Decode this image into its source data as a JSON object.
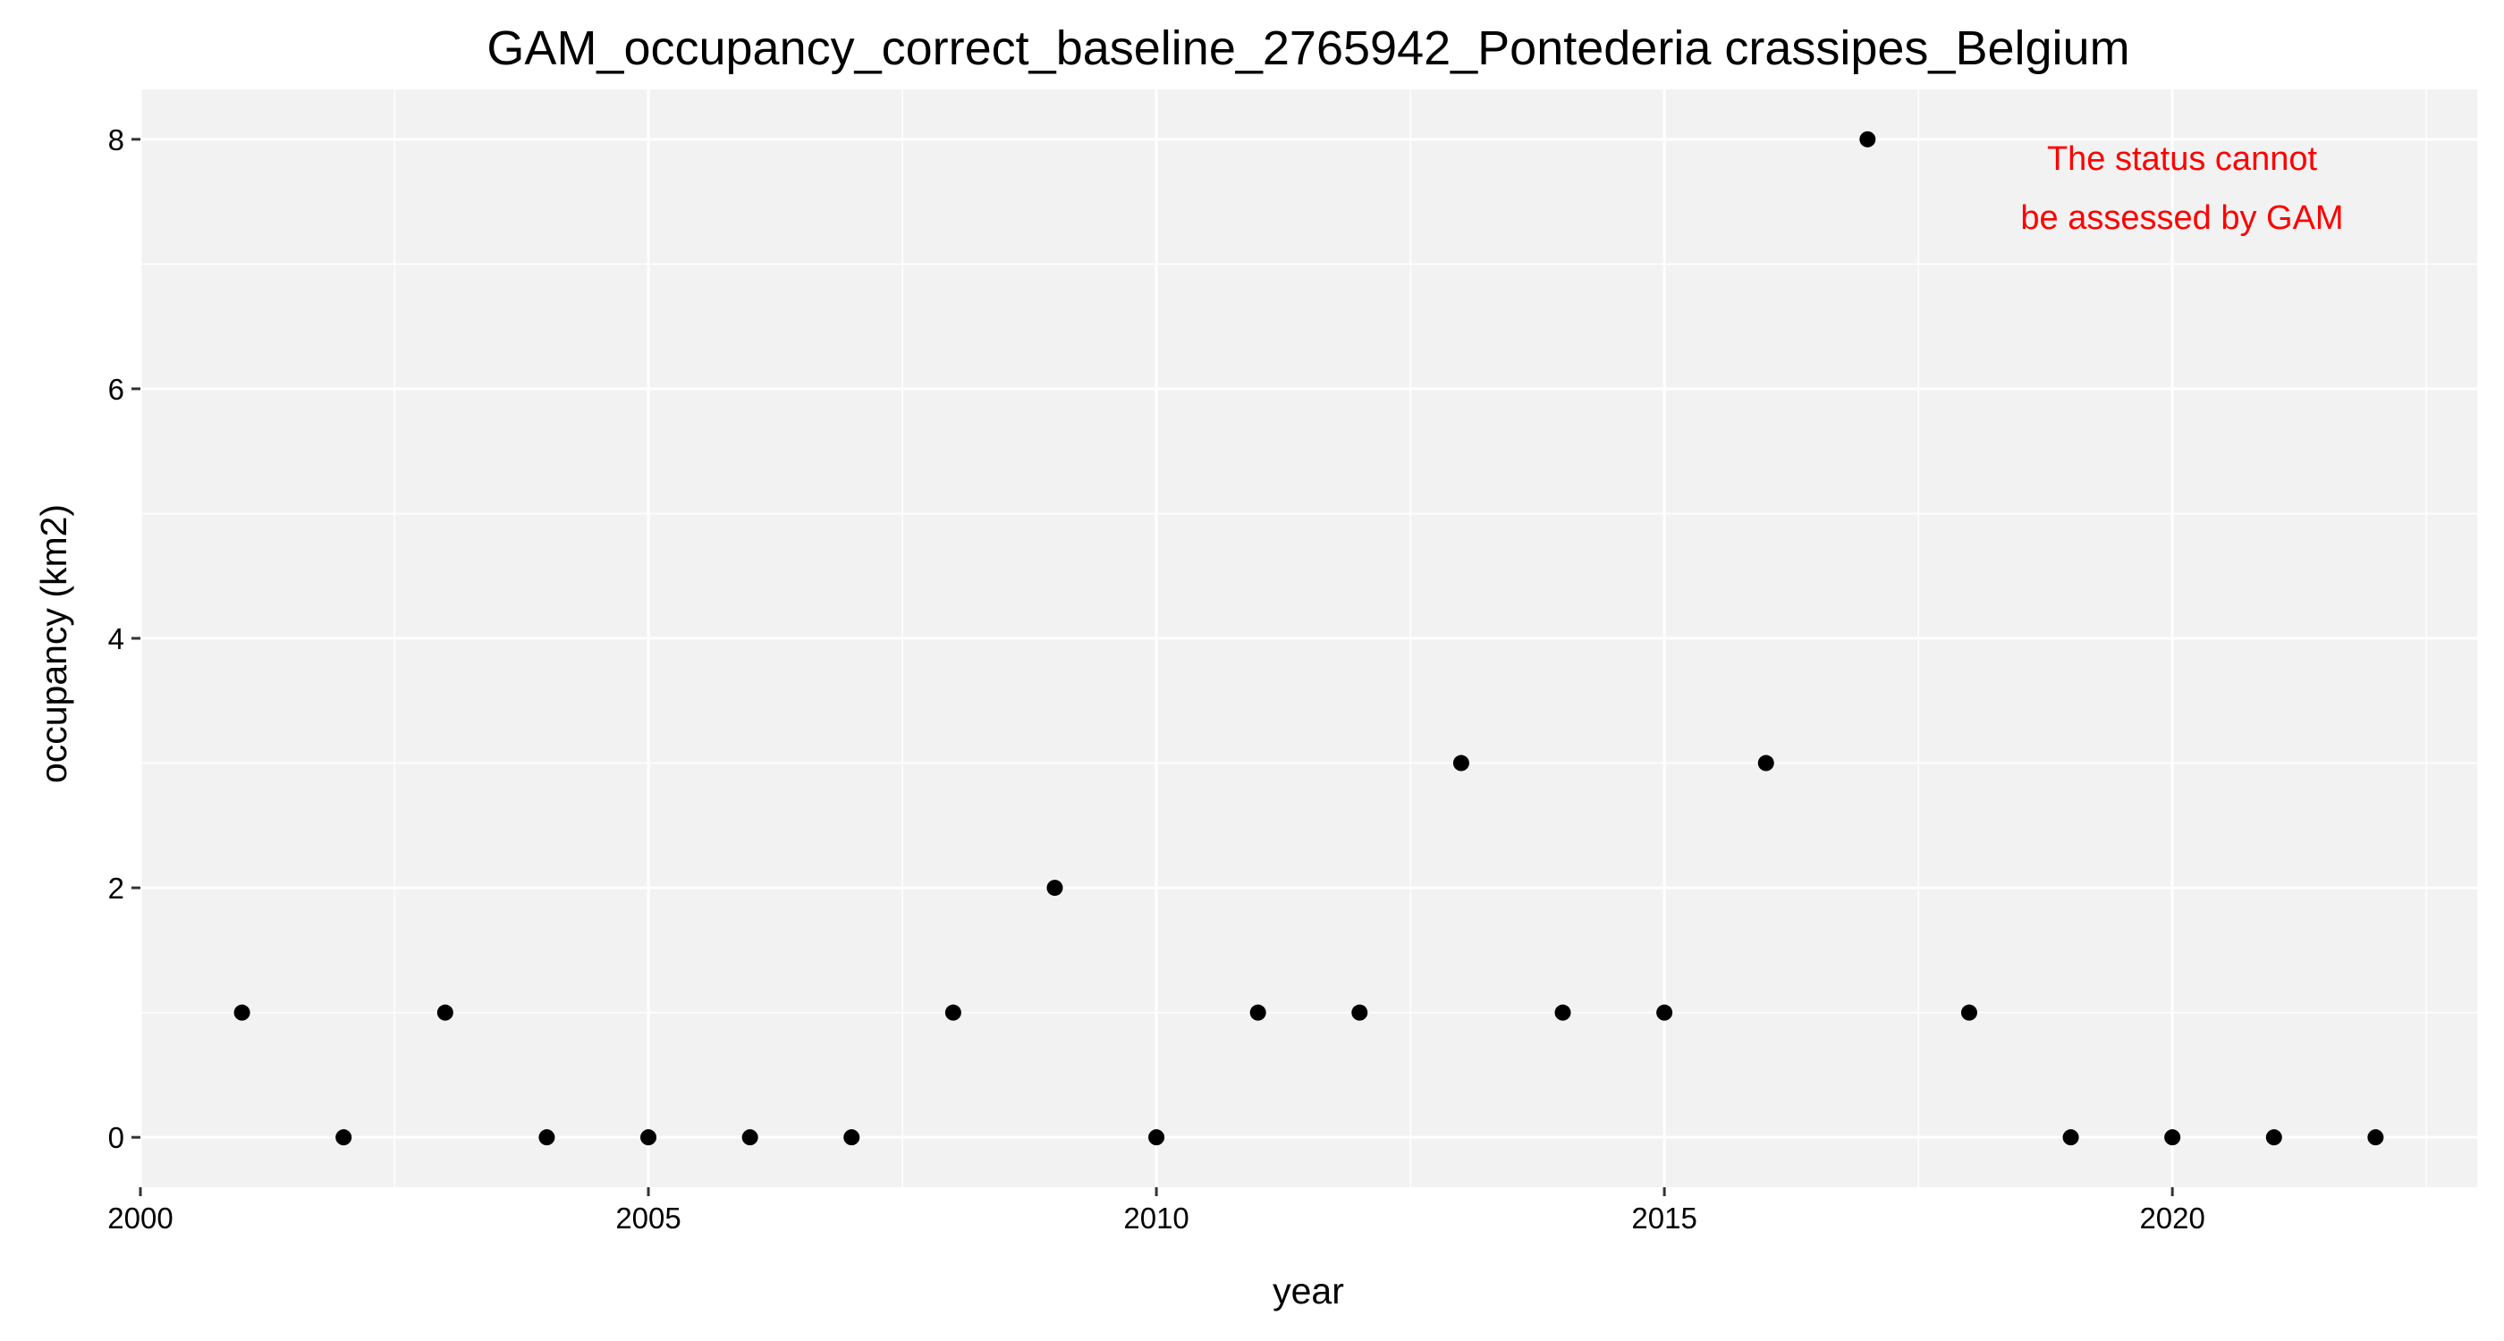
{
  "chart_data": {
    "type": "scatter",
    "title": "GAM_occupancy_correct_baseline_2765942_Pontederia crassipes_Belgium",
    "xlabel": "year",
    "ylabel": "occupancy (km2)",
    "x": [
      2001,
      2002,
      2003,
      2004,
      2005,
      2006,
      2007,
      2008,
      2009,
      2010,
      2011,
      2012,
      2013,
      2014,
      2015,
      2016,
      2017,
      2018,
      2019,
      2020,
      2021,
      2022
    ],
    "y": [
      1,
      0,
      1,
      0,
      0,
      0,
      0,
      1,
      2,
      0,
      1,
      1,
      3,
      1,
      1,
      3,
      8,
      1,
      0,
      0,
      0,
      0
    ],
    "xlim": [
      2000,
      2023
    ],
    "ylim": [
      -0.4,
      8.4
    ],
    "x_ticks": [
      2000,
      2005,
      2010,
      2015,
      2020
    ],
    "x_tick_labels": [
      "2000",
      "2005",
      "2010",
      "2015",
      "2020"
    ],
    "y_ticks": [
      0,
      2,
      4,
      6,
      8
    ],
    "y_tick_labels": [
      "0",
      "2",
      "4",
      "6",
      "8"
    ],
    "grid": true,
    "annotation": {
      "lines": [
        "The status cannot",
        "be assessed by GAM"
      ],
      "color": "#ff0000",
      "placement": "top-right"
    },
    "colors": {
      "panel_background": "#f2f2f2",
      "grid": "#ffffff",
      "point": "#000000"
    }
  }
}
